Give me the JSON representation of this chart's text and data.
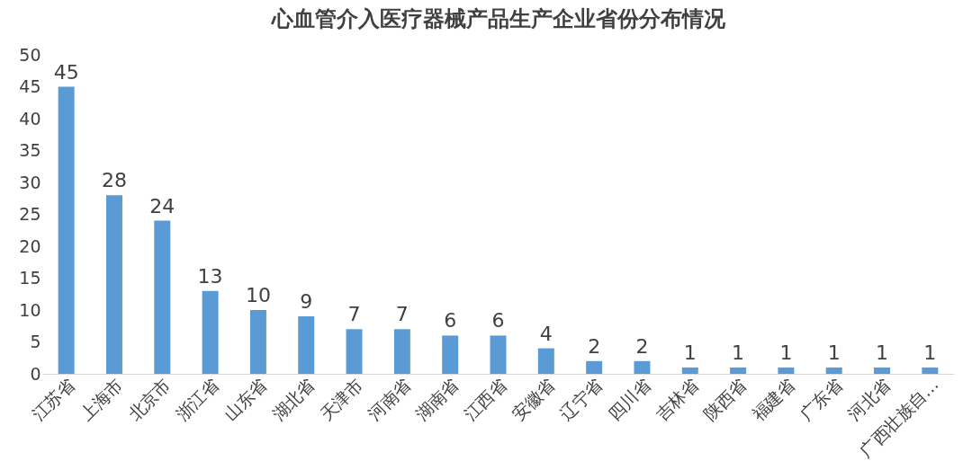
{
  "chart_data": {
    "type": "bar",
    "title": "心血管介入医疗器械产品生产企业省份分布情况",
    "categories": [
      "江苏省",
      "上海市",
      "北京市",
      "浙江省",
      "山东省",
      "湖北省",
      "天津市",
      "河南省",
      "湖南省",
      "江西省",
      "安徽省",
      "辽宁省",
      "四川省",
      "吉林省",
      "陕西省",
      "福建省",
      "广东省",
      "河北省",
      "广西壮族自…"
    ],
    "values": [
      45,
      28,
      24,
      13,
      10,
      9,
      7,
      7,
      6,
      6,
      4,
      2,
      2,
      1,
      1,
      1,
      1,
      1,
      1
    ],
    "color": "#5b9bd5",
    "ylim": [
      0,
      50
    ],
    "yticks": [
      0,
      5,
      10,
      15,
      20,
      25,
      30,
      35,
      40,
      45,
      50
    ],
    "grid": false,
    "data_labels": true
  }
}
